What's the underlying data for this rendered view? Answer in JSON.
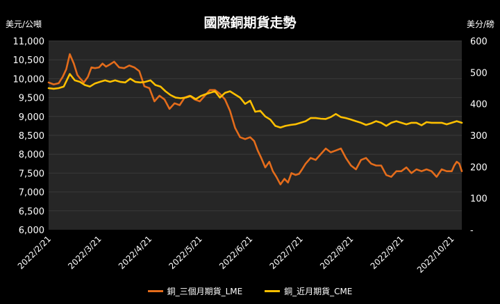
{
  "chart_data": {
    "type": "line",
    "title": "國際銅期貨走勢",
    "left_axis": {
      "unit": "美元/公噸",
      "ylim": [
        6000,
        11000
      ],
      "ticks": [
        "6,000",
        "6,500",
        "7,000",
        "7,500",
        "8,000",
        "8,500",
        "9,000",
        "9,500",
        "10,000",
        "10,500",
        "11,000"
      ]
    },
    "right_axis": {
      "unit": "美分/磅",
      "ylim": [
        0,
        600
      ],
      "ticks": [
        "-",
        "100",
        "200",
        "300",
        "400",
        "500",
        "600"
      ]
    },
    "x_ticks": [
      "2022/2/21",
      "2022/3/21",
      "2022/4/21",
      "2022/5/21",
      "2022/6/21",
      "2022/7/21",
      "2022/8/21",
      "2022/9/21",
      "2022/10/21"
    ],
    "x_range": [
      0,
      8.2
    ],
    "colors": {
      "plot_bg": "#262626",
      "grid": "#3a3a3a",
      "lme": "#e46c1b",
      "cme": "#ffc000"
    },
    "series": [
      {
        "name": "銅_三個月期貨_LME",
        "axis": "left",
        "color": "#e46c1b",
        "x": [
          0.0,
          0.1,
          0.2,
          0.28,
          0.35,
          0.42,
          0.5,
          0.57,
          0.63,
          0.7,
          0.78,
          0.85,
          0.92,
          1.0,
          1.07,
          1.14,
          1.22,
          1.3,
          1.4,
          1.5,
          1.6,
          1.7,
          1.8,
          1.9,
          2.0,
          2.1,
          2.2,
          2.3,
          2.4,
          2.5,
          2.6,
          2.7,
          2.8,
          2.9,
          3.0,
          3.1,
          3.2,
          3.3,
          3.4,
          3.5,
          3.6,
          3.7,
          3.8,
          3.9,
          4.0,
          4.08,
          4.15,
          4.22,
          4.3,
          4.38,
          4.45,
          4.52,
          4.6,
          4.68,
          4.75,
          4.82,
          4.9,
          4.97,
          5.03,
          5.1,
          5.2,
          5.3,
          5.4,
          5.5,
          5.6,
          5.7,
          5.8,
          5.9,
          6.0,
          6.1,
          6.2,
          6.3,
          6.4,
          6.5,
          6.6,
          6.7,
          6.8,
          6.9,
          7.0,
          7.1,
          7.2,
          7.3,
          7.4,
          7.5,
          7.6,
          7.7,
          7.8,
          7.9,
          8.0,
          8.05,
          8.1,
          8.15,
          8.2
        ],
        "values": [
          9900,
          9850,
          9880,
          10050,
          10250,
          10650,
          10400,
          10100,
          10000,
          9900,
          10050,
          10300,
          10280,
          10300,
          10400,
          10320,
          10380,
          10450,
          10300,
          10280,
          10350,
          10300,
          10200,
          9800,
          9750,
          9400,
          9550,
          9450,
          9200,
          9350,
          9300,
          9500,
          9550,
          9450,
          9400,
          9550,
          9700,
          9700,
          9600,
          9450,
          9150,
          8700,
          8450,
          8400,
          8450,
          8350,
          8100,
          7900,
          7650,
          7800,
          7550,
          7400,
          7200,
          7350,
          7250,
          7500,
          7450,
          7480,
          7600,
          7750,
          7900,
          7850,
          8000,
          8150,
          8050,
          8100,
          8150,
          7900,
          7700,
          7600,
          7850,
          7900,
          7750,
          7700,
          7700,
          7450,
          7400,
          7550,
          7550,
          7650,
          7500,
          7600,
          7550,
          7600,
          7550,
          7400,
          7600,
          7550,
          7550,
          7700,
          7800,
          7750,
          7550
        ]
      },
      {
        "name": "銅_近月期貨_CME",
        "axis": "right",
        "color": "#ffc000",
        "x": [
          0.0,
          0.1,
          0.2,
          0.3,
          0.42,
          0.52,
          0.62,
          0.72,
          0.82,
          0.92,
          1.02,
          1.12,
          1.22,
          1.32,
          1.42,
          1.52,
          1.62,
          1.72,
          1.82,
          1.92,
          2.02,
          2.12,
          2.22,
          2.32,
          2.42,
          2.52,
          2.62,
          2.72,
          2.82,
          2.92,
          3.02,
          3.1,
          3.2,
          3.3,
          3.4,
          3.5,
          3.6,
          3.7,
          3.8,
          3.9,
          4.0,
          4.1,
          4.2,
          4.3,
          4.4,
          4.5,
          4.6,
          4.7,
          4.8,
          4.9,
          5.0,
          5.1,
          5.2,
          5.3,
          5.4,
          5.5,
          5.6,
          5.7,
          5.8,
          5.9,
          6.0,
          6.1,
          6.2,
          6.3,
          6.4,
          6.5,
          6.6,
          6.7,
          6.8,
          6.9,
          7.0,
          7.1,
          7.2,
          7.3,
          7.4,
          7.5,
          7.6,
          7.7,
          7.8,
          7.9,
          8.0,
          8.1,
          8.2
        ],
        "values": [
          450,
          448,
          450,
          455,
          495,
          475,
          470,
          460,
          455,
          465,
          470,
          475,
          470,
          475,
          470,
          468,
          480,
          470,
          468,
          470,
          475,
          460,
          455,
          440,
          428,
          420,
          418,
          420,
          425,
          415,
          425,
          430,
          435,
          440,
          420,
          435,
          440,
          430,
          420,
          400,
          410,
          375,
          378,
          360,
          350,
          330,
          325,
          330,
          333,
          335,
          340,
          345,
          355,
          355,
          353,
          352,
          358,
          368,
          358,
          355,
          350,
          345,
          340,
          333,
          338,
          345,
          340,
          330,
          340,
          345,
          340,
          335,
          340,
          340,
          332,
          342,
          340,
          340,
          340,
          335,
          340,
          345,
          340
        ]
      }
    ]
  }
}
